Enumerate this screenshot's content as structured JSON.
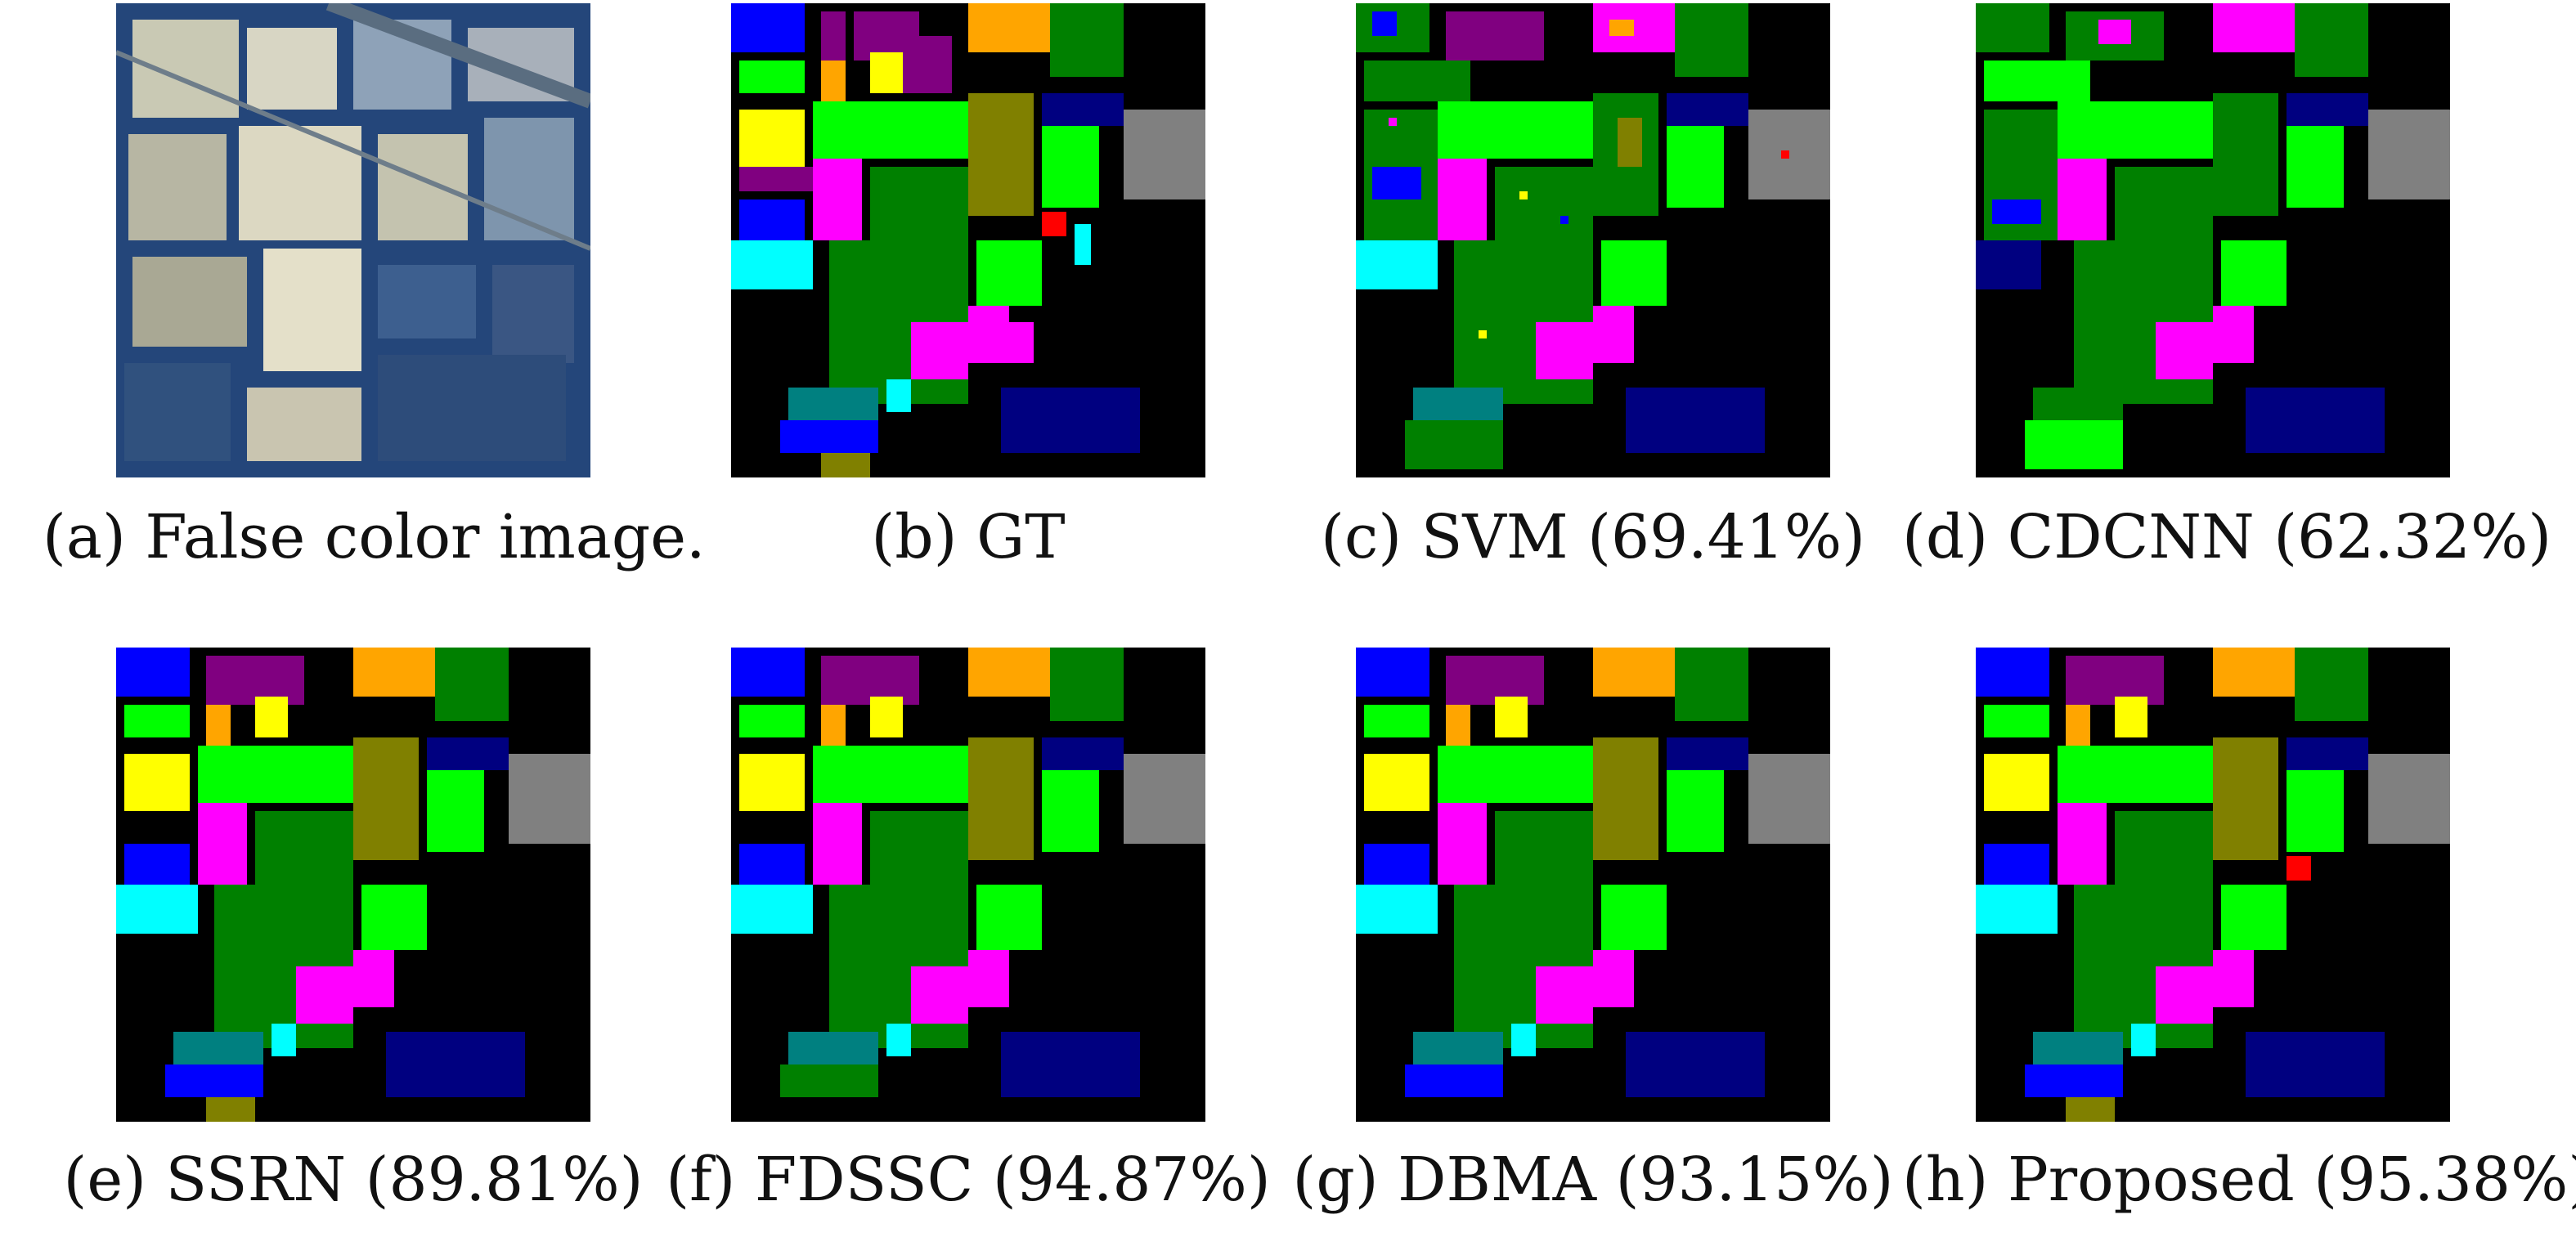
{
  "figure": {
    "panels": [
      {
        "id": "a",
        "tag": "(a)",
        "method": "False color image.",
        "accuracy": "",
        "kind": "false-color"
      },
      {
        "id": "b",
        "tag": "(b)",
        "method": "GT",
        "accuracy": "",
        "kind": "ground-truth"
      },
      {
        "id": "c",
        "tag": "(c)",
        "method": "SVM",
        "accuracy": "(69.41%)",
        "kind": "classification-map",
        "noise": "heavy"
      },
      {
        "id": "d",
        "tag": "(d)",
        "method": "CDCNN",
        "accuracy": "(62.32%)",
        "kind": "classification-map",
        "noise": "heavy"
      },
      {
        "id": "e",
        "tag": "(e)",
        "method": "SSRN",
        "accuracy": "(89.81%)",
        "kind": "classification-map",
        "noise": "moderate"
      },
      {
        "id": "f",
        "tag": "(f)",
        "method": "FDSSC",
        "accuracy": "(94.87%)",
        "kind": "classification-map",
        "noise": "light"
      },
      {
        "id": "g",
        "tag": "(g)",
        "method": "DBMA",
        "accuracy": "(93.15%)",
        "kind": "classification-map",
        "noise": "light"
      },
      {
        "id": "h",
        "tag": "(h)",
        "method": "Proposed",
        "accuracy": "(95.38%)",
        "kind": "classification-map",
        "noise": "light"
      }
    ],
    "class_colors": [
      "#0000ff",
      "#00ff00",
      "#ffa500",
      "#800080",
      "#ffff00",
      "#ff00ff",
      "#008000",
      "#808000",
      "#000080",
      "#00ffff",
      "#808080",
      "#ff0000",
      "#008080",
      "#c0c0c0"
    ],
    "background_color": "#000000"
  }
}
